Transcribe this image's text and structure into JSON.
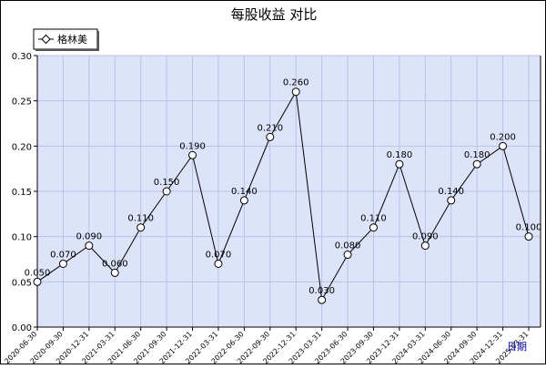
{
  "chart_data": {
    "type": "line",
    "title": "每股收益  对比",
    "legend": {
      "placement": "top-left",
      "entries": [
        "格林美"
      ]
    },
    "categories": [
      "2020-06-30",
      "2020-09-30",
      "2020-12-31",
      "2021-03-31",
      "2021-06-30",
      "2021-09-30",
      "2021-12-31",
      "2022-03-31",
      "2022-06-30",
      "2022-09-30",
      "2022-12-31",
      "2023-03-31",
      "2023-06-30",
      "2023-09-30",
      "2023-12-31",
      "2024-03-31",
      "2024-06-30",
      "2024-09-30",
      "2024-12-31",
      "2025-03-31"
    ],
    "tick_labels": [
      "2020-06-30",
      "2020-09-30",
      "2020-12-31",
      "2021-03-31",
      "2021-06-30",
      "2021-09-30",
      "2021-12-31",
      "2022-03-31",
      "2022-06-30",
      "2022-09-30",
      "2022-12-31",
      "2023-03-31",
      "2023-06-30",
      "2023-09-30",
      "2023-12-31",
      "2024-03-31",
      "2024-06-30",
      "2024-09-30",
      "2024-12-31",
      "2025-03-31"
    ],
    "series": [
      {
        "name": "格林美",
        "values": [
          0.05,
          0.07,
          0.09,
          0.06,
          0.11,
          0.15,
          0.19,
          0.07,
          0.14,
          0.21,
          0.26,
          0.03,
          0.08,
          0.11,
          0.18,
          0.09,
          0.14,
          0.18,
          0.2,
          0.1
        ]
      }
    ],
    "data_labels": [
      "0.050",
      "0.070",
      "0.090",
      "0.060",
      "0.110",
      "0.150",
      "0.190",
      "0.070",
      "0.140",
      "0.210",
      "0.260",
      "0.030",
      "0.080",
      "0.110",
      "0.180",
      "0.090",
      "0.140",
      "0.180",
      "0.200",
      "0.100"
    ],
    "yticks": [
      "0.00",
      "0.05",
      "0.10",
      "0.15",
      "0.20",
      "0.25",
      "0.30"
    ],
    "ylim": [
      0,
      0.3
    ],
    "xlabel_suffix": "日期",
    "grid": true,
    "colors": {
      "plot_bg": "#dde3f8",
      "grid": "#b8c2e6",
      "line": "#000000",
      "label": "#000000",
      "axis_title": "#0000aa"
    }
  }
}
